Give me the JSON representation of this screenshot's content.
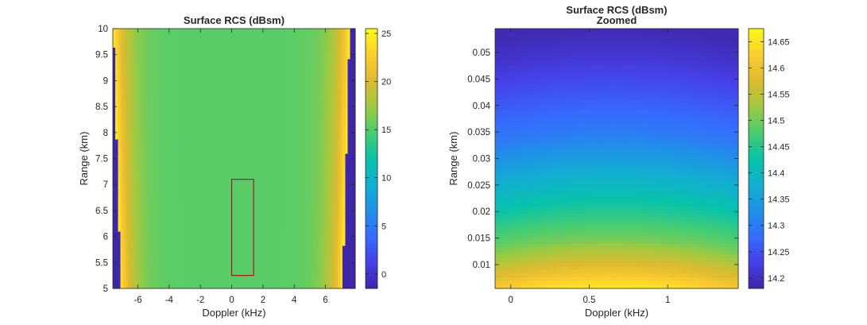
{
  "chart_data": [
    {
      "type": "heatmap",
      "title": "Surface RCS (dBsm)",
      "subtitle": "",
      "xlabel": "Doppler (kHz)",
      "ylabel": "Range (km)",
      "xlim": [
        -7.6,
        7.9
      ],
      "ylim": [
        5,
        10
      ],
      "xticks": [
        -6,
        -4,
        -2,
        0,
        2,
        4,
        6
      ],
      "xtick_labels": [
        "-6",
        "-4",
        "-2",
        "0",
        "2",
        "4",
        "6"
      ],
      "yticks": [
        5,
        5.5,
        6,
        6.5,
        7,
        7.5,
        8,
        8.5,
        9,
        9.5,
        10
      ],
      "ytick_labels": [
        "5",
        "5.5",
        "6",
        "6.5",
        "7",
        "7.5",
        "8",
        "8.5",
        "9",
        "9.5",
        "10"
      ],
      "colorbar": {
        "limits": [
          -1.5,
          25.5
        ],
        "ticks": [
          0,
          5,
          10,
          15,
          20,
          25
        ],
        "tick_labels": [
          "0",
          "5",
          "10",
          "15",
          "20",
          "25"
        ]
      },
      "annotation": {
        "shape": "rectangle",
        "color": "#a2142f",
        "x_range": [
          0,
          1.4
        ],
        "y_range": [
          5.25,
          7.1
        ]
      },
      "surface_model": {
        "edge_doppler_at_range_5km": 7.1,
        "edge_doppler_at_range_10km": 7.55,
        "center_value": 15.2,
        "edge_peak_value": 24.5,
        "outside_value": -1.5
      }
    },
    {
      "type": "heatmap",
      "title": "Surface RCS (dBsm)",
      "subtitle": "Zoomed",
      "xlabel": "Doppler (kHz)",
      "ylabel": "Range (km)",
      "xlim": [
        -0.1,
        1.45
      ],
      "ylim": [
        0.0055,
        0.0545
      ],
      "xticks": [
        0,
        0.5,
        1
      ],
      "xtick_labels": [
        "0",
        "0.5",
        "1"
      ],
      "yticks": [
        0.01,
        0.015,
        0.02,
        0.025,
        0.03,
        0.035,
        0.04,
        0.045,
        0.05
      ],
      "ytick_labels": [
        "0.01",
        "0.015",
        "0.02",
        "0.025",
        "0.03",
        "0.035",
        "0.04",
        "0.045",
        "0.05"
      ],
      "colorbar": {
        "limits": [
          14.18,
          14.675
        ],
        "ticks": [
          14.2,
          14.25,
          14.3,
          14.35,
          14.4,
          14.45,
          14.5,
          14.55,
          14.6,
          14.65
        ],
        "tick_labels": [
          "14.2",
          "14.25",
          "14.3",
          "14.35",
          "14.4",
          "14.45",
          "14.5",
          "14.55",
          "14.6",
          "14.65"
        ]
      },
      "surface_model": {
        "value_profile_by_range": [
          [
            0.0055,
            14.66
          ],
          [
            0.01,
            14.58
          ],
          [
            0.015,
            14.5
          ],
          [
            0.02,
            14.45
          ],
          [
            0.025,
            14.4
          ],
          [
            0.03,
            14.35
          ],
          [
            0.035,
            14.3
          ],
          [
            0.04,
            14.27
          ],
          [
            0.045,
            14.24
          ],
          [
            0.05,
            14.21
          ],
          [
            0.0545,
            14.19
          ]
        ],
        "doppler_center": 0.65
      }
    }
  ]
}
